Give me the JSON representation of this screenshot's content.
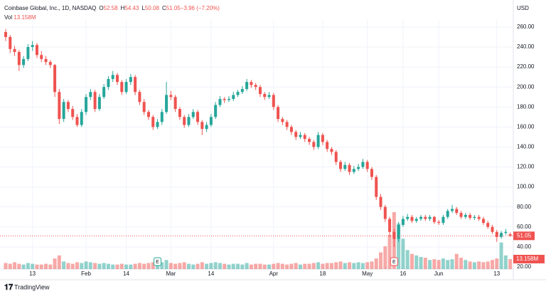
{
  "chart_data": {
    "type": "candlestick",
    "title": "Coinbase Global, Inc., 1D, NASDAQ",
    "legend_fields": [
      {
        "label": "O",
        "value": "52.58"
      },
      {
        "label": "H",
        "value": "54.43"
      },
      {
        "label": "L",
        "value": "50.08"
      },
      {
        "label": "C",
        "value": "51.05"
      },
      {
        "label": "",
        "value": "−3.96 (−7.20%)"
      }
    ],
    "volume_label": "Vol",
    "volume_value": "13.158M",
    "currency": "USD",
    "brand": "TradingView",
    "earnings_marker": "E",
    "up_color": "#26a69a",
    "down_color": "#ef5350",
    "ylim": [
      17.8,
      267.1
    ],
    "yticks": [
      {
        "value": 20,
        "label": "20.00"
      },
      {
        "value": 40,
        "label": "40.00"
      },
      {
        "value": 60,
        "label": "60.00"
      },
      {
        "value": 80,
        "label": "80.00"
      },
      {
        "value": 100,
        "label": "100.00"
      },
      {
        "value": 120,
        "label": "120.00"
      },
      {
        "value": 140,
        "label": "140.00"
      },
      {
        "value": 160,
        "label": "160.00"
      },
      {
        "value": 180,
        "label": "180.00"
      },
      {
        "value": 200,
        "label": "200.00"
      },
      {
        "value": 220,
        "label": "220.00"
      },
      {
        "value": 240,
        "label": "240.00"
      },
      {
        "value": 260,
        "label": "260.00"
      }
    ],
    "last_price": {
      "value": 51.05,
      "label": "51.05"
    },
    "last_volume": {
      "value": 13.158,
      "label": "13.158M"
    },
    "categories": [
      null,
      null,
      null,
      null,
      null,
      null,
      "13",
      null,
      null,
      null,
      null,
      null,
      null,
      null,
      null,
      null,
      null,
      null,
      "Feb",
      null,
      null,
      null,
      null,
      null,
      null,
      null,
      null,
      "14",
      null,
      null,
      null,
      null,
      null,
      null,
      null,
      null,
      null,
      "Mar",
      null,
      null,
      null,
      null,
      null,
      null,
      null,
      null,
      "14",
      null,
      null,
      null,
      null,
      null,
      null,
      null,
      null,
      null,
      null,
      null,
      null,
      null,
      "Apr",
      null,
      null,
      null,
      null,
      null,
      null,
      null,
      null,
      null,
      null,
      "18",
      null,
      null,
      null,
      null,
      null,
      null,
      null,
      null,
      null,
      "May",
      null,
      null,
      null,
      null,
      null,
      null,
      null,
      "16",
      null,
      null,
      null,
      null,
      null,
      null,
      null,
      "Jun",
      null,
      null,
      null,
      null,
      null,
      null,
      null,
      null,
      null,
      null,
      null,
      null,
      "13",
      null,
      null,
      null
    ],
    "ohlc": [
      [
        255,
        258,
        246,
        250
      ],
      [
        250,
        252,
        234,
        238
      ],
      [
        238,
        241,
        231,
        235
      ],
      [
        235,
        237,
        216,
        222
      ],
      [
        222,
        231,
        219,
        228
      ],
      [
        228,
        243,
        226,
        240
      ],
      [
        240,
        246,
        236,
        242
      ],
      [
        242,
        244,
        229,
        232
      ],
      [
        232,
        236,
        225,
        228
      ],
      [
        228,
        231,
        222,
        225
      ],
      [
        225,
        227,
        219,
        222
      ],
      [
        222,
        223,
        190,
        195
      ],
      [
        195,
        198,
        163,
        168
      ],
      [
        168,
        188,
        165,
        185
      ],
      [
        185,
        187,
        175,
        178
      ],
      [
        178,
        181,
        167,
        170
      ],
      [
        170,
        173,
        160,
        162
      ],
      [
        162,
        178,
        160,
        175
      ],
      [
        175,
        193,
        172,
        190
      ],
      [
        190,
        198,
        187,
        195
      ],
      [
        195,
        197,
        175,
        178
      ],
      [
        178,
        193,
        176,
        190
      ],
      [
        190,
        203,
        188,
        200
      ],
      [
        200,
        211,
        197,
        208
      ],
      [
        208,
        216,
        205,
        212
      ],
      [
        212,
        214,
        202,
        205
      ],
      [
        205,
        207,
        192,
        195
      ],
      [
        195,
        208,
        193,
        205
      ],
      [
        205,
        213,
        202,
        210
      ],
      [
        210,
        212,
        192,
        195
      ],
      [
        195,
        197,
        182,
        185
      ],
      [
        185,
        188,
        172,
        175
      ],
      [
        175,
        177,
        167,
        170
      ],
      [
        170,
        172,
        157,
        160
      ],
      [
        160,
        168,
        158,
        165
      ],
      [
        165,
        178,
        162,
        175
      ],
      [
        175,
        205,
        173,
        192
      ],
      [
        192,
        196,
        187,
        190
      ],
      [
        190,
        192,
        175,
        178
      ],
      [
        178,
        180,
        167,
        170
      ],
      [
        170,
        172,
        159,
        162
      ],
      [
        162,
        173,
        160,
        170
      ],
      [
        170,
        178,
        168,
        175
      ],
      [
        175,
        177,
        162,
        165
      ],
      [
        165,
        167,
        152,
        158
      ],
      [
        158,
        165,
        155,
        162
      ],
      [
        162,
        173,
        160,
        170
      ],
      [
        170,
        185,
        168,
        182
      ],
      [
        182,
        191,
        180,
        188
      ],
      [
        188,
        190,
        184,
        187
      ],
      [
        187,
        191,
        185,
        188
      ],
      [
        188,
        195,
        186,
        192
      ],
      [
        192,
        197,
        190,
        195
      ],
      [
        195,
        201,
        193,
        198
      ],
      [
        198,
        208,
        196,
        205
      ],
      [
        205,
        207,
        199,
        202
      ],
      [
        202,
        204,
        197,
        200
      ],
      [
        200,
        202,
        190,
        193
      ],
      [
        193,
        195,
        187,
        190
      ],
      [
        190,
        195,
        188,
        192
      ],
      [
        192,
        194,
        177,
        180
      ],
      [
        180,
        182,
        165,
        168
      ],
      [
        168,
        170,
        162,
        165
      ],
      [
        165,
        167,
        157,
        160
      ],
      [
        160,
        162,
        152,
        155
      ],
      [
        155,
        157,
        147,
        150
      ],
      [
        150,
        155,
        148,
        152
      ],
      [
        152,
        154,
        145,
        148
      ],
      [
        148,
        150,
        142,
        145
      ],
      [
        145,
        147,
        137,
        140
      ],
      [
        140,
        155,
        138,
        152
      ],
      [
        152,
        154,
        142,
        145
      ],
      [
        145,
        147,
        135,
        138
      ],
      [
        138,
        140,
        132,
        135
      ],
      [
        135,
        137,
        122,
        125
      ],
      [
        125,
        127,
        115,
        118
      ],
      [
        118,
        125,
        116,
        122
      ],
      [
        122,
        124,
        112,
        115
      ],
      [
        115,
        121,
        113,
        118
      ],
      [
        118,
        123,
        116,
        120
      ],
      [
        120,
        128,
        118,
        125
      ],
      [
        125,
        127,
        115,
        118
      ],
      [
        118,
        120,
        107,
        110
      ],
      [
        110,
        112,
        87,
        90
      ],
      [
        90,
        93,
        77,
        80
      ],
      [
        80,
        82,
        65,
        68
      ],
      [
        68,
        70,
        50,
        55
      ],
      [
        55,
        58,
        40,
        48
      ],
      [
        48,
        65,
        45,
        62
      ],
      [
        62,
        71,
        60,
        68
      ],
      [
        68,
        73,
        66,
        70
      ],
      [
        70,
        72,
        64,
        66
      ],
      [
        66,
        70,
        64,
        68
      ],
      [
        68,
        72,
        66,
        70
      ],
      [
        70,
        72,
        66,
        68
      ],
      [
        68,
        72,
        66,
        70
      ],
      [
        70,
        71,
        63,
        65
      ],
      [
        65,
        67,
        62,
        64
      ],
      [
        64,
        72,
        62,
        70
      ],
      [
        70,
        78,
        68,
        76
      ],
      [
        76,
        82,
        74,
        78
      ],
      [
        78,
        80,
        72,
        74
      ],
      [
        74,
        76,
        68,
        70
      ],
      [
        70,
        74,
        68,
        72
      ],
      [
        72,
        74,
        67,
        69
      ],
      [
        69,
        72,
        67,
        70
      ],
      [
        70,
        72,
        66,
        68
      ],
      [
        68,
        70,
        62,
        64
      ],
      [
        64,
        66,
        58,
        60
      ],
      [
        60,
        62,
        53,
        55
      ],
      [
        55,
        57,
        45,
        50
      ],
      [
        50,
        56,
        48,
        54
      ],
      [
        54,
        58,
        52,
        55.01
      ],
      [
        52.58,
        54.43,
        50.08,
        51.05
      ]
    ],
    "volume": [
      8,
      7,
      9,
      7,
      6,
      8,
      7,
      6,
      6,
      7,
      6,
      14,
      18,
      10,
      8,
      7,
      9,
      8,
      10,
      9,
      8,
      7,
      8,
      7,
      6,
      6,
      7,
      6,
      6,
      7,
      8,
      7,
      8,
      9,
      7,
      9,
      12,
      8,
      7,
      8,
      9,
      7,
      6,
      7,
      9,
      7,
      8,
      9,
      8,
      7,
      6,
      7,
      7,
      6,
      8,
      6,
      7,
      7,
      6,
      6,
      7,
      8,
      7,
      6,
      7,
      8,
      6,
      7,
      7,
      8,
      9,
      7,
      8,
      8,
      9,
      10,
      8,
      9,
      8,
      9,
      8,
      9,
      10,
      14,
      22,
      30,
      45,
      75,
      60,
      40,
      25,
      20,
      18,
      16,
      15,
      12,
      13,
      12,
      14,
      12,
      13,
      20,
      15,
      12,
      10,
      9,
      10,
      9,
      10,
      12,
      14,
      35,
      18,
      13.158
    ]
  }
}
